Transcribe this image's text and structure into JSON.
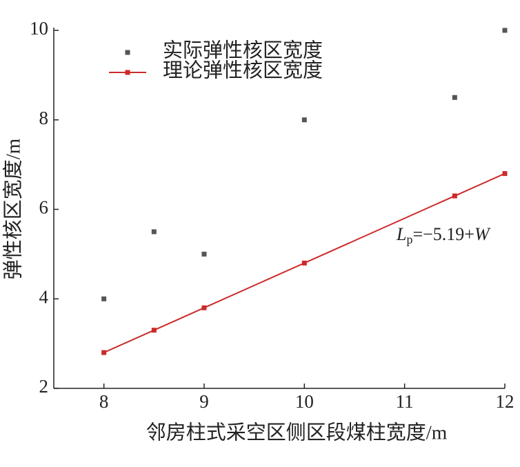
{
  "chart_data": {
    "type": "scatter",
    "x_label": "邻房柱式采空区侧区段煤柱宽度/m",
    "y_label": "弹性核区宽度/m",
    "series": [
      {
        "name": "实际弹性核区宽度",
        "color": "#555555",
        "mode": "markers",
        "x": [
          8,
          8.5,
          9,
          10,
          11.5,
          12
        ],
        "values": [
          4,
          5.5,
          5,
          8,
          8.5,
          10
        ]
      },
      {
        "name": "理论弹性核区宽度",
        "color": "#cc2a2a",
        "mode": "lines+markers",
        "x": [
          8,
          8.5,
          9,
          10,
          11.5,
          12
        ],
        "values": [
          2.8,
          3.3,
          3.8,
          4.8,
          6.3,
          6.8
        ]
      }
    ],
    "annotation": [
      "L",
      "p",
      "=−5.19+",
      "W"
    ],
    "xlim": [
      7.5,
      12
    ],
    "xticks": [
      8,
      9,
      10,
      11,
      12
    ],
    "ylim": [
      2,
      10
    ],
    "yticks": [
      2,
      4,
      6,
      8,
      10
    ],
    "legend": "upper left"
  }
}
